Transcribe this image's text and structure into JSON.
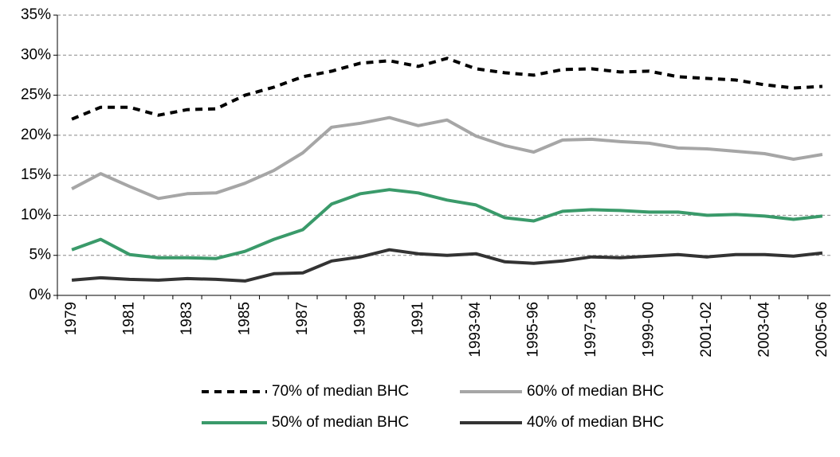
{
  "chart_data": {
    "type": "line",
    "categories": [
      "1979",
      null,
      "1981",
      null,
      "1983",
      null,
      "1985",
      null,
      "1987",
      null,
      "1989",
      null,
      "1991",
      null,
      "1993-94",
      null,
      "1995-96",
      null,
      "1997-98",
      null,
      "1999-00",
      null,
      "2001-02",
      null,
      "2003-04",
      null,
      "2005-06"
    ],
    "series": [
      {
        "name": "70% of median BHC",
        "color": "#000000",
        "dashed": true,
        "values": [
          22.0,
          23.5,
          23.5,
          22.5,
          23.2,
          23.3,
          25.0,
          26.0,
          27.3,
          28.0,
          29.0,
          29.3,
          28.6,
          29.6,
          28.3,
          27.8,
          27.5,
          28.2,
          28.3,
          27.9,
          28.0,
          27.3,
          27.1,
          26.9,
          26.3,
          25.9,
          26.1
        ]
      },
      {
        "name": "60% of median BHC",
        "color": "#a6a6a6",
        "dashed": false,
        "values": [
          13.3,
          15.2,
          13.6,
          12.1,
          12.7,
          12.8,
          14.0,
          15.6,
          17.8,
          21.0,
          21.5,
          22.2,
          21.2,
          21.9,
          19.9,
          18.7,
          17.9,
          19.4,
          19.5,
          19.2,
          19.0,
          18.4,
          18.3,
          18.0,
          17.7,
          17.0,
          17.6
        ]
      },
      {
        "name": "50% of median BHC",
        "color": "#3a9a6a",
        "dashed": false,
        "values": [
          5.7,
          7.0,
          5.1,
          4.7,
          4.7,
          4.6,
          5.5,
          7.0,
          8.2,
          11.4,
          12.7,
          13.2,
          12.8,
          11.9,
          11.3,
          9.7,
          9.3,
          10.5,
          10.7,
          10.6,
          10.4,
          10.4,
          10.0,
          10.1,
          9.9,
          9.5,
          9.9
        ]
      },
      {
        "name": "40% of median BHC",
        "color": "#333333",
        "dashed": false,
        "values": [
          1.9,
          2.2,
          2.0,
          1.9,
          2.1,
          2.0,
          1.8,
          2.7,
          2.8,
          4.3,
          4.8,
          5.7,
          5.2,
          5.0,
          5.2,
          4.2,
          4.0,
          4.3,
          4.8,
          4.7,
          4.9,
          5.1,
          4.8,
          5.1,
          5.1,
          4.9,
          5.3
        ]
      }
    ],
    "ylim": [
      0,
      35
    ],
    "yticks": [
      {
        "value": 0,
        "label": "0%"
      },
      {
        "value": 5,
        "label": "5%"
      },
      {
        "value": 10,
        "label": "10%"
      },
      {
        "value": 15,
        "label": "15%"
      },
      {
        "value": 20,
        "label": "20%"
      },
      {
        "value": 25,
        "label": "25%"
      },
      {
        "value": 30,
        "label": "30%"
      },
      {
        "value": 35,
        "label": "35%"
      }
    ],
    "grid": true,
    "legend": "bottom"
  }
}
